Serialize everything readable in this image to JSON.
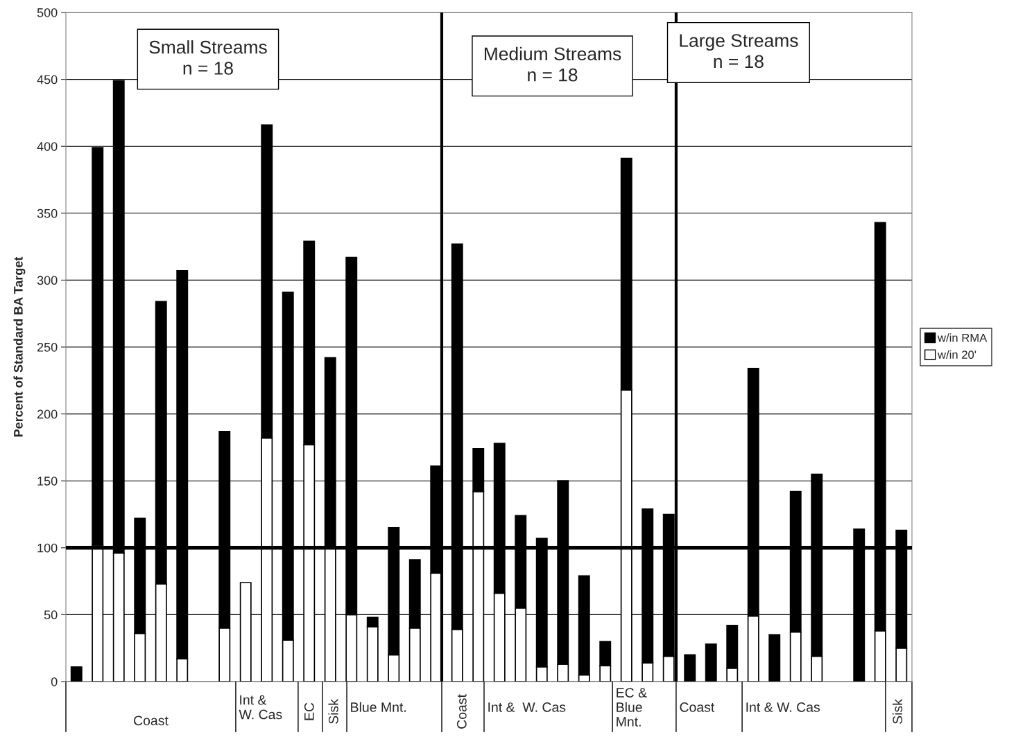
{
  "chart_data": {
    "type": "bar",
    "stacked": true,
    "ylabel": "Percent of Standard BA Target",
    "categories": [
      null,
      null,
      null,
      null,
      null,
      null,
      null,
      null,
      null,
      null,
      null,
      null,
      null,
      null,
      null,
      null,
      null,
      null,
      null,
      null,
      null,
      null,
      null,
      null,
      null,
      null,
      null,
      null,
      null,
      null,
      null,
      null,
      null,
      null,
      null,
      null,
      null,
      null,
      null,
      null
    ],
    "series": [
      {
        "name": "w/in 20'",
        "color": "#ffffff",
        "values": [
          null,
          102,
          96,
          36,
          73,
          17,
          null,
          40,
          74,
          182,
          31,
          177,
          100,
          50,
          41,
          20,
          40,
          81,
          39,
          142,
          66,
          55,
          11,
          13,
          5,
          12,
          218,
          14,
          19,
          null,
          null,
          10,
          49,
          null,
          37,
          19,
          null,
          null,
          38,
          25
        ]
      },
      {
        "name": "w/in RMA",
        "color": "#000000",
        "values": [
          11,
          297,
          353,
          86,
          211,
          290,
          null,
          147,
          null,
          234,
          260,
          152,
          142,
          267,
          7,
          95,
          51,
          80,
          288,
          32,
          112,
          69,
          96,
          137,
          74,
          18,
          173,
          115,
          106,
          20,
          28,
          32,
          185,
          35,
          105,
          136,
          null,
          114,
          305,
          88
        ]
      }
    ],
    "ylim": [
      0,
      500
    ],
    "yticks": [
      0,
      50,
      100,
      150,
      200,
      250,
      300,
      350,
      400,
      450,
      500
    ],
    "grid": "y",
    "legend": "right",
    "ref_lines": [
      {
        "axis": "y",
        "value": 100,
        "color": "#000000"
      }
    ],
    "annotations": [
      "Small Streams\nn = 18",
      "Medium Streams\nn = 18",
      "Large Streams\nn = 18",
      "Coast",
      "Int &\nW. Cas",
      "EC",
      "Sisk",
      "Blue Mnt.",
      "Coast",
      "Int &  W. Cas",
      "EC &\nBlue\nMnt.",
      "Coast",
      "Int & W. Cas",
      "Sisk"
    ]
  }
}
